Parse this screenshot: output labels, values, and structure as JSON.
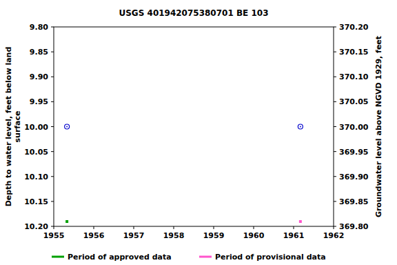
{
  "chart_data": {
    "type": "scatter",
    "title": "USGS 401942075380701 BE   103",
    "ylabel": "Depth to water level, feet below land\nsurface",
    "y2label": "Groundwater level above NGVD 1929, feet",
    "xlim": [
      1955,
      1962
    ],
    "xticks": [
      1955,
      1956,
      1957,
      1958,
      1959,
      1960,
      1961,
      1962
    ],
    "ylim": [
      10.2,
      9.8
    ],
    "yticks": [
      {
        "value": 9.8,
        "label": "9.80"
      },
      9.85,
      {
        "value": 9.9,
        "label": "9.90"
      },
      9.95,
      {
        "value": 10.0,
        "label": "10.00"
      },
      10.05,
      {
        "value": 10.1,
        "label": "10.10"
      },
      10.15,
      {
        "value": 10.2,
        "label": "10.20"
      }
    ],
    "y2lim": [
      369.8,
      370.2
    ],
    "y2ticks": [
      {
        "value": 370.2,
        "label": "370.20"
      },
      370.15,
      {
        "value": 370.1,
        "label": "370.10"
      },
      370.05,
      {
        "value": 370.0,
        "label": "370.00"
      },
      369.95,
      {
        "value": 369.9,
        "label": "369.90"
      },
      369.85,
      {
        "value": 369.8,
        "label": "369.80"
      }
    ],
    "grid": false,
    "legend": "bottom",
    "marker": "circle",
    "series": [
      {
        "name": "Period of approved data",
        "color": "#00a000",
        "x": [
          1955.33
        ],
        "values": [
          10.0
        ]
      },
      {
        "name": "Period of provisional data",
        "color": "#ff55cc",
        "x": [
          1961.17
        ],
        "values": [
          10.0
        ]
      }
    ]
  }
}
